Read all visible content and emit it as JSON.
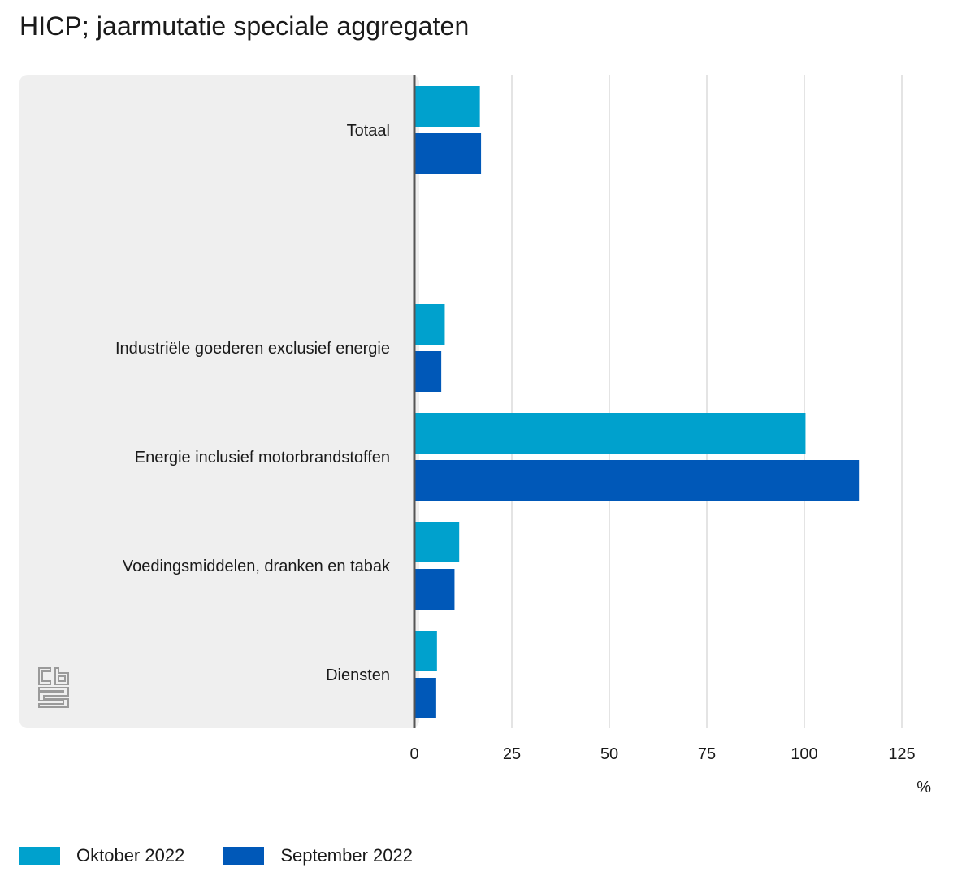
{
  "title": "HICP; jaarmutatie speciale aggregaten",
  "unit_label": "%",
  "colors": {
    "oktober": "#00a1cd",
    "september": "#0058b8",
    "panel": "#efefef",
    "grid": "#c8c8c8",
    "axis": "#555555",
    "logo": "#9a9a9a"
  },
  "icons": {
    "logo": "cbs-logo-icon"
  },
  "chart_data": {
    "type": "bar",
    "orientation": "horizontal",
    "title": "HICP; jaarmutatie speciale aggregaten",
    "xlabel": "%",
    "ylabel": "",
    "xlim": [
      0,
      125
    ],
    "ticks": [
      0,
      25,
      50,
      75,
      100,
      125
    ],
    "grid": true,
    "legend_position": "bottom-left",
    "categories": [
      "Totaal",
      "",
      "Industriële goederen exclusief energie",
      "Energie inclusief motorbrandstoffen",
      "Voedingsmiddelen, dranken en tabak",
      "Diensten"
    ],
    "series": [
      {
        "name": "Oktober 2022",
        "color": "#00a1cd",
        "values": [
          16.8,
          null,
          7.8,
          100.3,
          11.5,
          5.8
        ]
      },
      {
        "name": "September 2022",
        "color": "#0058b8",
        "values": [
          17.1,
          null,
          6.9,
          114.0,
          10.3,
          5.6
        ]
      }
    ]
  }
}
